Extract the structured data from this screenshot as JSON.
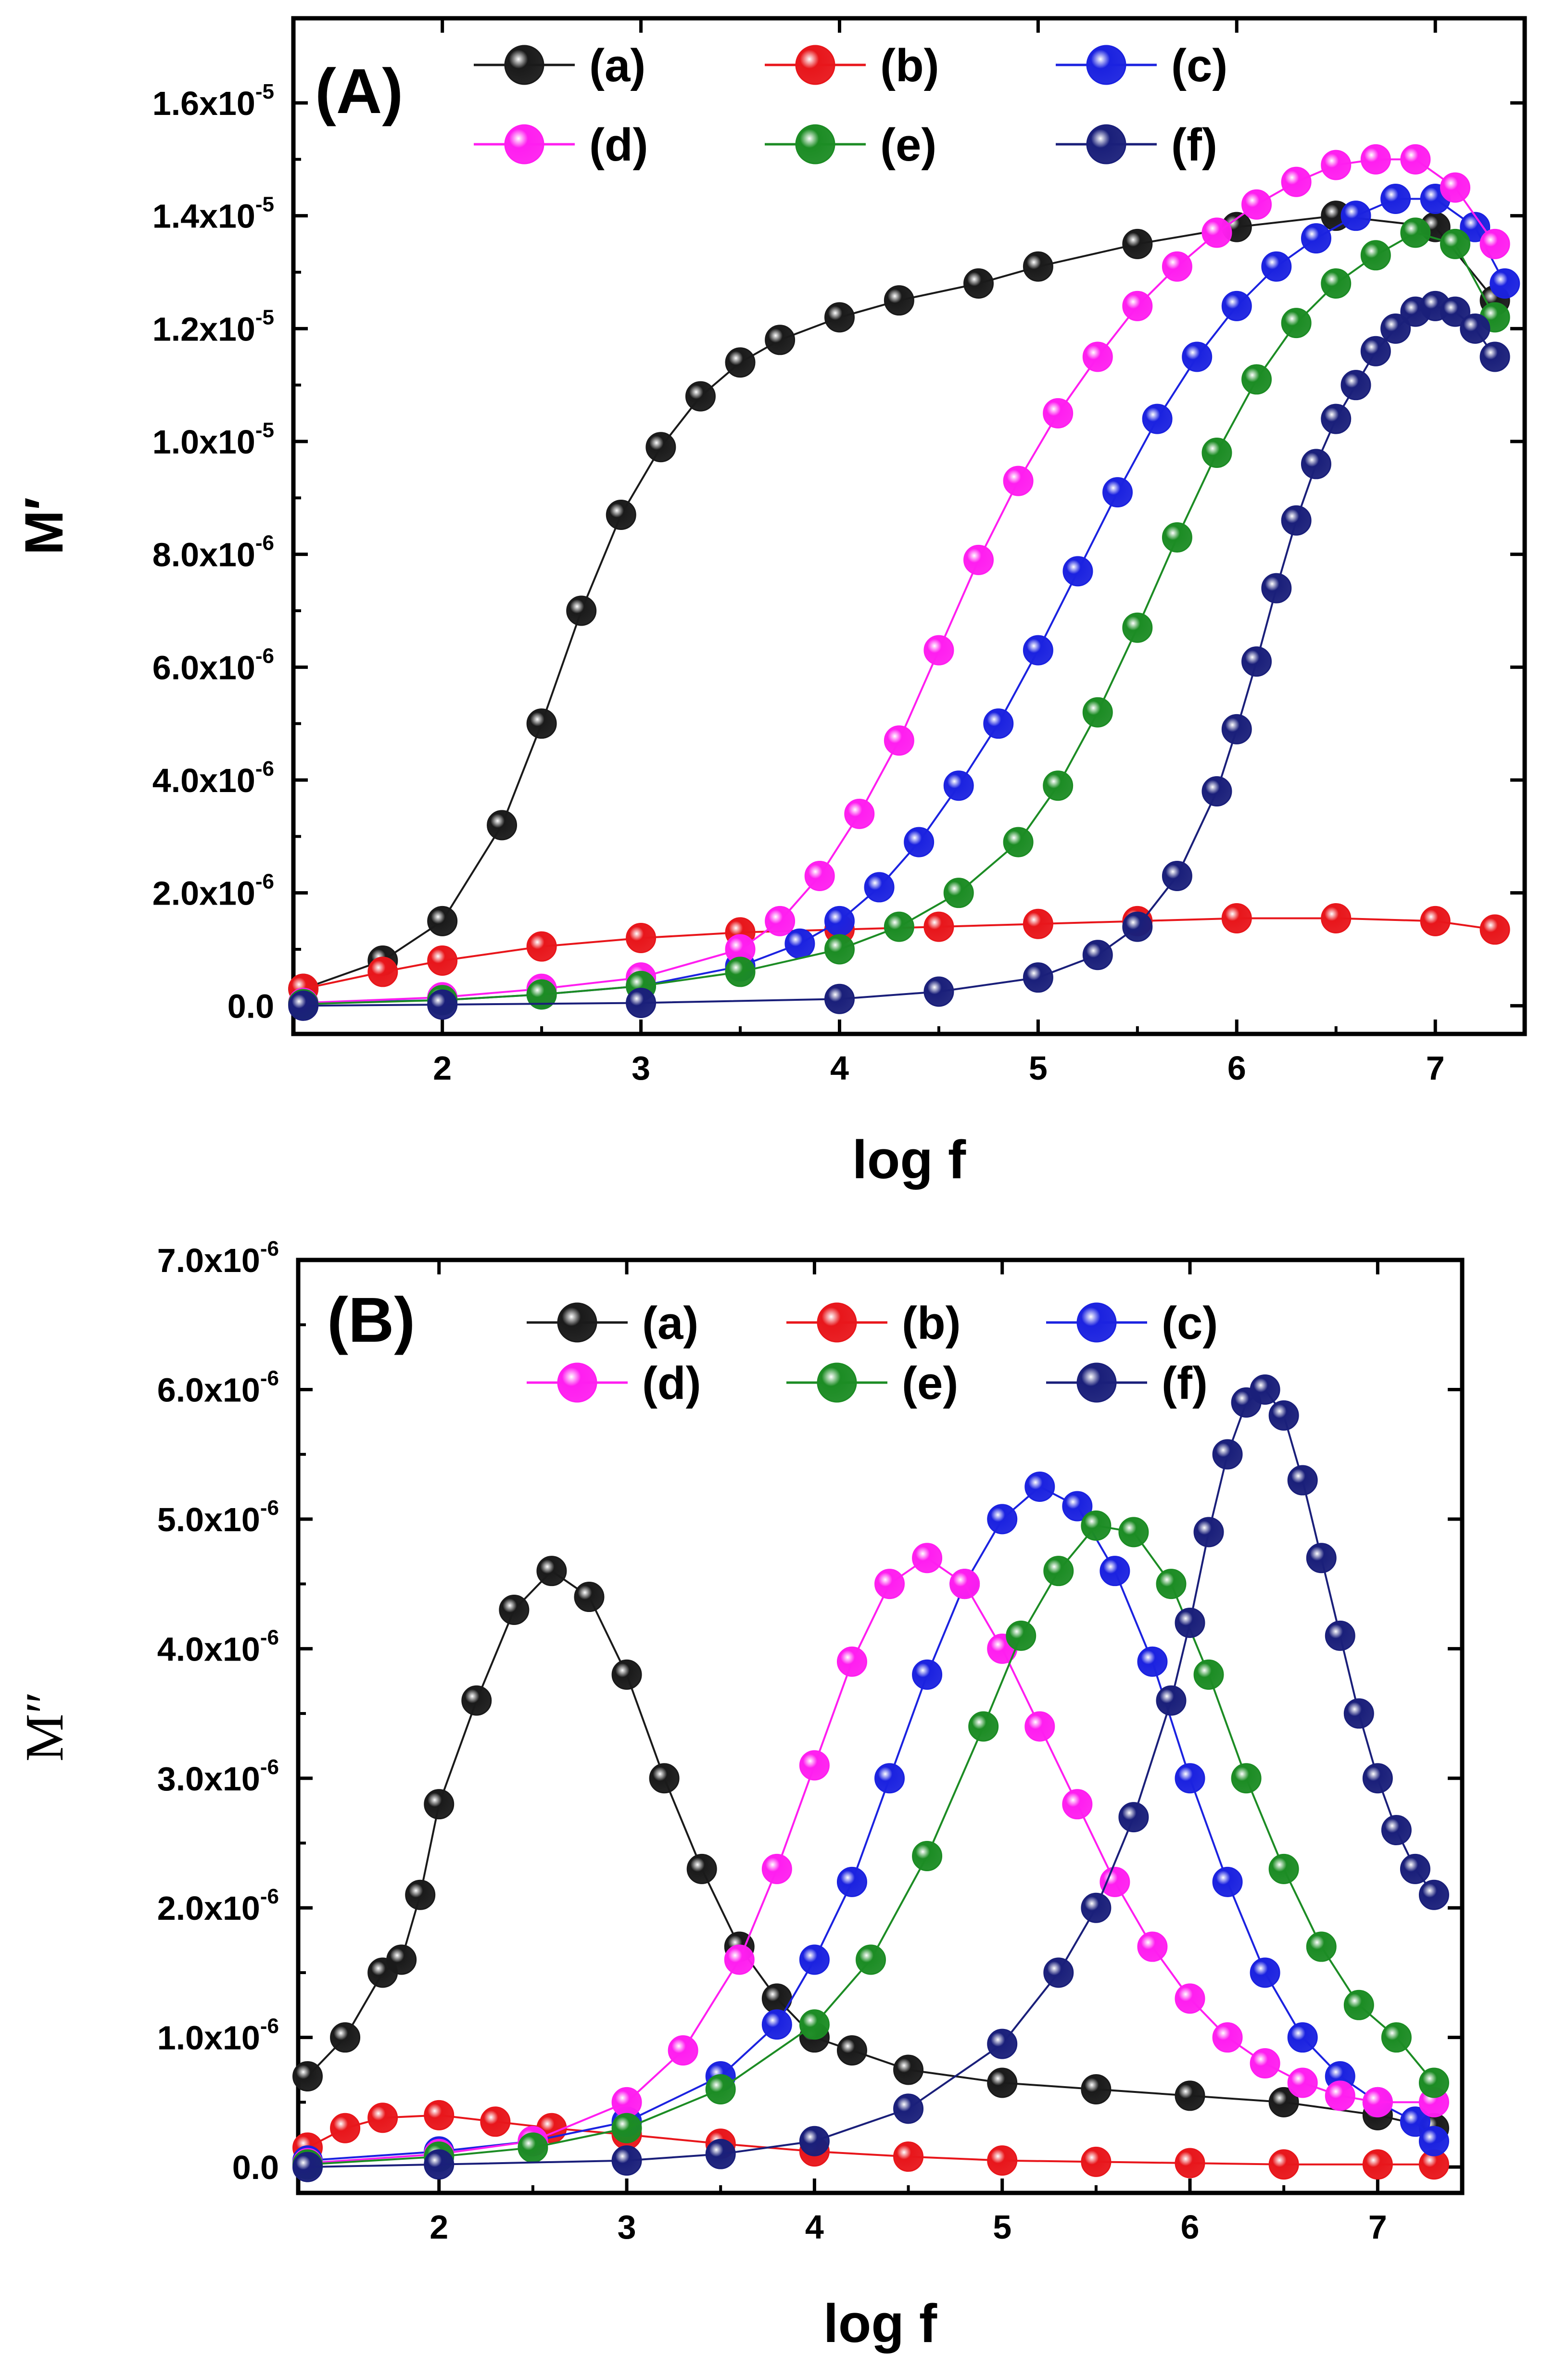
{
  "chart_data": [
    {
      "type": "scatter",
      "panel_label": "(A)",
      "xlabel": "log f",
      "ylabel": "M′",
      "xlim": [
        1.25,
        7.45
      ],
      "ylim": [
        -5e-07,
        1.75e-05
      ],
      "x_ticks": [
        "2",
        "3",
        "4",
        "5",
        "6",
        "7"
      ],
      "y_ticks": [
        {
          "value": 0,
          "mantissa": "0.0",
          "exp": ""
        },
        {
          "value": 2e-06,
          "mantissa": "2.0x10",
          "exp": "-6"
        },
        {
          "value": 4e-06,
          "mantissa": "4.0x10",
          "exp": "-6"
        },
        {
          "value": 6e-06,
          "mantissa": "6.0x10",
          "exp": "-6"
        },
        {
          "value": 8e-06,
          "mantissa": "8.0x10",
          "exp": "-6"
        },
        {
          "value": 1e-05,
          "mantissa": "1.0x10",
          "exp": "-5"
        },
        {
          "value": 1.2e-05,
          "mantissa": "1.2x10",
          "exp": "-5"
        },
        {
          "value": 1.4e-05,
          "mantissa": "1.4x10",
          "exp": "-5"
        },
        {
          "value": 1.6e-05,
          "mantissa": "1.6x10",
          "exp": "-5"
        }
      ],
      "series": [
        {
          "name": "(a)",
          "color": "#1a1a1a",
          "x": [
            1.3,
            1.7,
            2.0,
            2.3,
            2.5,
            2.7,
            2.9,
            3.1,
            3.3,
            3.5,
            3.7,
            4.0,
            4.3,
            4.7,
            5.0,
            5.5,
            6.0,
            6.5,
            7.0,
            7.3
          ],
          "y": [
            3e-07,
            8e-07,
            1.5e-06,
            3.2e-06,
            5e-06,
            7e-06,
            8.7e-06,
            9.9e-06,
            1.08e-05,
            1.14e-05,
            1.18e-05,
            1.22e-05,
            1.25e-05,
            1.28e-05,
            1.31e-05,
            1.35e-05,
            1.38e-05,
            1.4e-05,
            1.38e-05,
            1.25e-05
          ]
        },
        {
          "name": "(b)",
          "color": "#e8161b",
          "x": [
            1.3,
            1.7,
            2.0,
            2.5,
            3.0,
            3.5,
            4.0,
            4.5,
            5.0,
            5.5,
            6.0,
            6.5,
            7.0,
            7.3
          ],
          "y": [
            3e-07,
            6e-07,
            8e-07,
            1.05e-06,
            1.2e-06,
            1.3e-06,
            1.35e-06,
            1.4e-06,
            1.45e-06,
            1.5e-06,
            1.55e-06,
            1.55e-06,
            1.5e-06,
            1.35e-06
          ]
        },
        {
          "name": "(c)",
          "color": "#1b22e0",
          "x": [
            1.3,
            2.0,
            2.5,
            3.0,
            3.5,
            3.8,
            4.0,
            4.2,
            4.4,
            4.6,
            4.8,
            5.0,
            5.2,
            5.4,
            5.6,
            5.8,
            6.0,
            6.2,
            6.4,
            6.6,
            6.8,
            7.0,
            7.2,
            7.35
          ],
          "y": [
            5e-08,
            1e-07,
            2e-07,
            3.5e-07,
            7e-07,
            1.1e-06,
            1.5e-06,
            2.1e-06,
            2.9e-06,
            3.9e-06,
            5e-06,
            6.3e-06,
            7.7e-06,
            9.1e-06,
            1.04e-05,
            1.15e-05,
            1.24e-05,
            1.31e-05,
            1.36e-05,
            1.4e-05,
            1.43e-05,
            1.43e-05,
            1.38e-05,
            1.28e-05
          ]
        },
        {
          "name": "(d)",
          "color": "#ff1ef0",
          "x": [
            1.3,
            2.0,
            2.5,
            3.0,
            3.5,
            3.7,
            3.9,
            4.1,
            4.3,
            4.5,
            4.7,
            4.9,
            5.1,
            5.3,
            5.5,
            5.7,
            5.9,
            6.1,
            6.3,
            6.5,
            6.7,
            6.9,
            7.1,
            7.3
          ],
          "y": [
            5e-08,
            1.5e-07,
            3e-07,
            5e-07,
            1e-06,
            1.5e-06,
            2.3e-06,
            3.4e-06,
            4.7e-06,
            6.3e-06,
            7.9e-06,
            9.3e-06,
            1.05e-05,
            1.15e-05,
            1.24e-05,
            1.31e-05,
            1.37e-05,
            1.42e-05,
            1.46e-05,
            1.49e-05,
            1.5e-05,
            1.5e-05,
            1.45e-05,
            1.35e-05
          ]
        },
        {
          "name": "(e)",
          "color": "#1c8c24",
          "x": [
            1.3,
            2.0,
            2.5,
            3.0,
            3.5,
            4.0,
            4.3,
            4.6,
            4.9,
            5.1,
            5.3,
            5.5,
            5.7,
            5.9,
            6.1,
            6.3,
            6.5,
            6.7,
            6.9,
            7.1,
            7.3
          ],
          "y": [
            3e-08,
            1e-07,
            2e-07,
            3.5e-07,
            6e-07,
            1e-06,
            1.4e-06,
            2e-06,
            2.9e-06,
            3.9e-06,
            5.2e-06,
            6.7e-06,
            8.3e-06,
            9.8e-06,
            1.11e-05,
            1.21e-05,
            1.28e-05,
            1.33e-05,
            1.37e-05,
            1.35e-05,
            1.22e-05
          ]
        },
        {
          "name": "(f)",
          "color": "#1a1f7a",
          "x": [
            1.3,
            2.0,
            3.0,
            4.0,
            4.5,
            5.0,
            5.3,
            5.5,
            5.7,
            5.9,
            6.0,
            6.1,
            6.2,
            6.3,
            6.4,
            6.5,
            6.6,
            6.7,
            6.8,
            6.9,
            7.0,
            7.1,
            7.2,
            7.3
          ],
          "y": [
            0.0,
            2e-08,
            5e-08,
            1.2e-07,
            2.5e-07,
            5e-07,
            9e-07,
            1.4e-06,
            2.3e-06,
            3.8e-06,
            4.9e-06,
            6.1e-06,
            7.4e-06,
            8.6e-06,
            9.6e-06,
            1.04e-05,
            1.1e-05,
            1.16e-05,
            1.2e-05,
            1.23e-05,
            1.24e-05,
            1.23e-05,
            1.2e-05,
            1.15e-05
          ]
        }
      ]
    },
    {
      "type": "scatter",
      "panel_label": "(B)",
      "xlabel": "log f",
      "ylabel": "M″",
      "xlim": [
        1.25,
        7.45
      ],
      "ylim": [
        -2e-07,
        7e-06
      ],
      "x_ticks": [
        "2",
        "3",
        "4",
        "5",
        "6",
        "7"
      ],
      "y_ticks": [
        {
          "value": 0,
          "mantissa": "0.0",
          "exp": ""
        },
        {
          "value": 1e-06,
          "mantissa": "1.0x10",
          "exp": "-6"
        },
        {
          "value": 2e-06,
          "mantissa": "2.0x10",
          "exp": "-6"
        },
        {
          "value": 3e-06,
          "mantissa": "3.0x10",
          "exp": "-6"
        },
        {
          "value": 4e-06,
          "mantissa": "4.0x10",
          "exp": "-6"
        },
        {
          "value": 5e-06,
          "mantissa": "5.0x10",
          "exp": "-6"
        },
        {
          "value": 6e-06,
          "mantissa": "6.0x10",
          "exp": "-6"
        },
        {
          "value": 7e-06,
          "mantissa": "7.0x10",
          "exp": "-6"
        }
      ],
      "series": [
        {
          "name": "(a)",
          "color": "#1a1a1a",
          "x": [
            1.3,
            1.5,
            1.7,
            1.8,
            1.9,
            2.0,
            2.2,
            2.4,
            2.6,
            2.8,
            3.0,
            3.2,
            3.4,
            3.6,
            3.8,
            4.0,
            4.2,
            4.5,
            5.0,
            5.5,
            6.0,
            6.5,
            7.0,
            7.3
          ],
          "y": [
            7e-07,
            1e-06,
            1.5e-06,
            1.6e-06,
            2.1e-06,
            2.8e-06,
            3.6e-06,
            4.3e-06,
            4.6e-06,
            4.4e-06,
            3.8e-06,
            3e-06,
            2.3e-06,
            1.7e-06,
            1.3e-06,
            1e-06,
            9e-07,
            7.5e-07,
            6.5e-07,
            6e-07,
            5.5e-07,
            5e-07,
            4e-07,
            3e-07
          ]
        },
        {
          "name": "(b)",
          "color": "#e8161b",
          "x": [
            1.3,
            1.5,
            1.7,
            2.0,
            2.3,
            2.6,
            3.0,
            3.5,
            4.0,
            4.5,
            5.0,
            5.5,
            6.0,
            6.5,
            7.0,
            7.3
          ],
          "y": [
            1.5e-07,
            3e-07,
            3.8e-07,
            4e-07,
            3.5e-07,
            3e-07,
            2.5e-07,
            1.8e-07,
            1.2e-07,
            8e-08,
            5e-08,
            4e-08,
            3e-08,
            2e-08,
            2e-08,
            2e-08
          ]
        },
        {
          "name": "(c)",
          "color": "#1b22e0",
          "x": [
            1.3,
            2.0,
            2.5,
            3.0,
            3.5,
            3.8,
            4.0,
            4.2,
            4.4,
            4.6,
            4.8,
            5.0,
            5.2,
            5.4,
            5.6,
            5.8,
            6.0,
            6.2,
            6.4,
            6.6,
            6.8,
            7.0,
            7.2,
            7.3
          ],
          "y": [
            5e-08,
            1.2e-07,
            2e-07,
            3.5e-07,
            7e-07,
            1.1e-06,
            1.6e-06,
            2.2e-06,
            3e-06,
            3.8e-06,
            4.5e-06,
            5e-06,
            5.25e-06,
            5.1e-06,
            4.6e-06,
            3.9e-06,
            3e-06,
            2.2e-06,
            1.5e-06,
            1e-06,
            7e-07,
            5e-07,
            3.5e-07,
            2e-07
          ]
        },
        {
          "name": "(d)",
          "color": "#ff1ef0",
          "x": [
            1.3,
            2.0,
            2.5,
            3.0,
            3.3,
            3.6,
            3.8,
            4.0,
            4.2,
            4.4,
            4.6,
            4.8,
            5.0,
            5.2,
            5.4,
            5.6,
            5.8,
            6.0,
            6.2,
            6.4,
            6.6,
            6.8,
            7.0,
            7.3
          ],
          "y": [
            3e-08,
            1e-07,
            2e-07,
            5e-07,
            9e-07,
            1.6e-06,
            2.3e-06,
            3.1e-06,
            3.9e-06,
            4.5e-06,
            4.7e-06,
            4.5e-06,
            4e-06,
            3.4e-06,
            2.8e-06,
            2.2e-06,
            1.7e-06,
            1.3e-06,
            1e-06,
            8e-07,
            6.5e-07,
            5.5e-07,
            5e-07,
            5e-07
          ]
        },
        {
          "name": "(e)",
          "color": "#1c8c24",
          "x": [
            1.3,
            2.0,
            2.5,
            3.0,
            3.5,
            4.0,
            4.3,
            4.6,
            4.9,
            5.1,
            5.3,
            5.5,
            5.7,
            5.9,
            6.1,
            6.3,
            6.5,
            6.7,
            6.9,
            7.1,
            7.3
          ],
          "y": [
            2e-08,
            8e-08,
            1.5e-07,
            3e-07,
            6e-07,
            1.1e-06,
            1.6e-06,
            2.4e-06,
            3.4e-06,
            4.1e-06,
            4.6e-06,
            4.95e-06,
            4.9e-06,
            4.5e-06,
            3.8e-06,
            3e-06,
            2.3e-06,
            1.7e-06,
            1.25e-06,
            1e-06,
            6.5e-07
          ]
        },
        {
          "name": "(f)",
          "color": "#1a1f7a",
          "x": [
            1.3,
            2.0,
            3.0,
            3.5,
            4.0,
            4.5,
            5.0,
            5.3,
            5.5,
            5.7,
            5.9,
            6.0,
            6.1,
            6.2,
            6.3,
            6.4,
            6.5,
            6.6,
            6.7,
            6.8,
            6.9,
            7.0,
            7.1,
            7.2,
            7.3
          ],
          "y": [
            0.0,
            2e-08,
            5e-08,
            1e-07,
            2e-07,
            4.5e-07,
            9.5e-07,
            1.5e-06,
            2e-06,
            2.7e-06,
            3.6e-06,
            4.2e-06,
            4.9e-06,
            5.5e-06,
            5.9e-06,
            6e-06,
            5.8e-06,
            5.3e-06,
            4.7e-06,
            4.1e-06,
            3.5e-06,
            3e-06,
            2.6e-06,
            2.3e-06,
            2.1e-06
          ]
        }
      ]
    }
  ]
}
